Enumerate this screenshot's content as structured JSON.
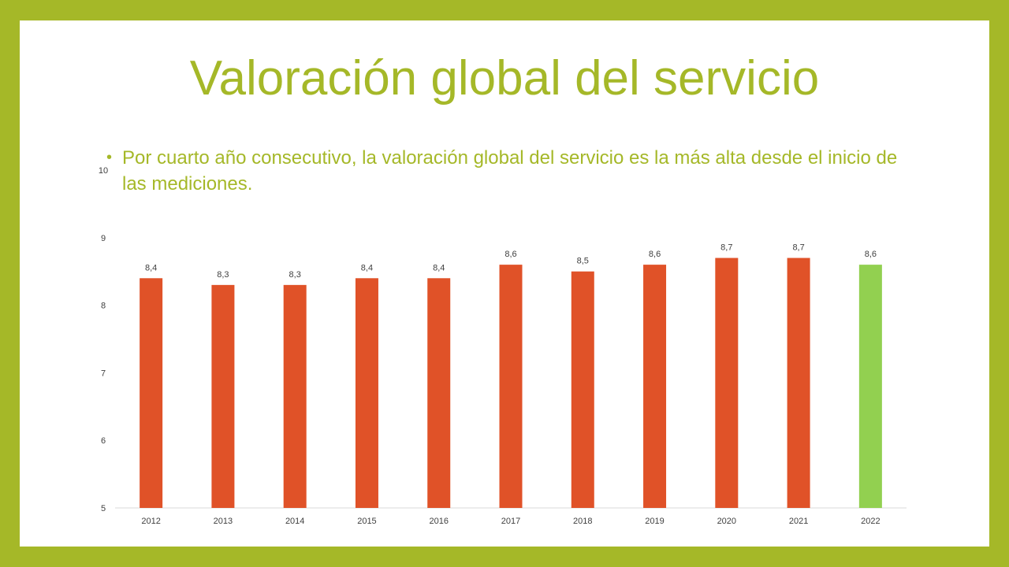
{
  "slide": {
    "title": "Valoración global del servicio",
    "bullet": "Por cuarto año consecutivo, la valoración global del servicio es la más alta desde el inicio de las mediciones."
  },
  "colors": {
    "frame": "#a5b828",
    "title": "#a5b828",
    "bar_default": "#e05228",
    "bar_highlight": "#92d050",
    "axis": "#d9d9d9"
  },
  "chart_data": {
    "type": "bar",
    "title": "",
    "xlabel": "",
    "ylabel": "",
    "categories": [
      "2012",
      "2013",
      "2014",
      "2015",
      "2016",
      "2017",
      "2018",
      "2019",
      "2020",
      "2021",
      "2022"
    ],
    "values": [
      8.4,
      8.3,
      8.3,
      8.4,
      8.4,
      8.6,
      8.5,
      8.6,
      8.7,
      8.7,
      8.6
    ],
    "data_labels": [
      "8,4",
      "8,3",
      "8,3",
      "8,4",
      "8,4",
      "8,6",
      "8,5",
      "8,6",
      "8,7",
      "8,7",
      "8,6"
    ],
    "highlight_index": 10,
    "ylim": [
      5,
      10
    ],
    "yticks": [
      5,
      6,
      7,
      8,
      9,
      10
    ],
    "grid": false,
    "legend": "none"
  }
}
